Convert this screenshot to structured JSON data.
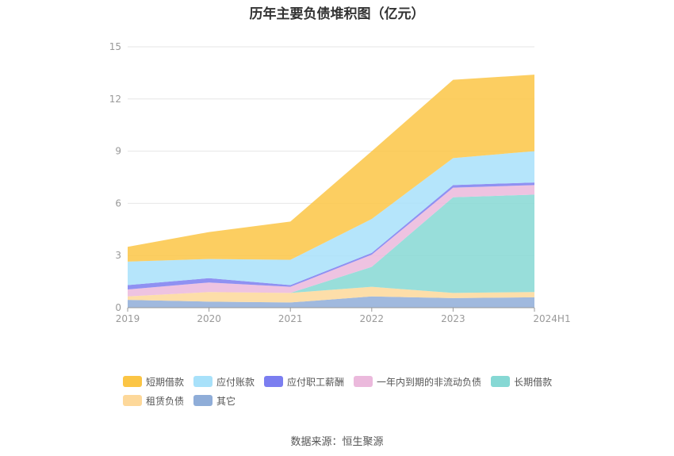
{
  "chart_data": {
    "type": "area",
    "stacked": true,
    "title": "历年主要负债堆积图（亿元）",
    "categories": [
      "2019",
      "2020",
      "2021",
      "2022",
      "2023",
      "2024H1"
    ],
    "ylim": [
      0,
      15
    ],
    "yticks": [
      0,
      3,
      6,
      9,
      12,
      15
    ],
    "grid": true,
    "legend_position": "bottom",
    "series": [
      {
        "name": "其它",
        "color": "#8fadd8",
        "values": [
          0.45,
          0.35,
          0.3,
          0.65,
          0.55,
          0.6
        ]
      },
      {
        "name": "租赁负债",
        "color": "#fdd89a",
        "values": [
          0.2,
          0.55,
          0.55,
          0.55,
          0.3,
          0.3
        ]
      },
      {
        "name": "长期借款",
        "color": "#86d8d4",
        "values": [
          0.0,
          0.0,
          0.0,
          1.15,
          5.5,
          5.6
        ]
      },
      {
        "name": "一年内到期的非流动负债",
        "color": "#ebb9dc",
        "values": [
          0.4,
          0.55,
          0.35,
          0.7,
          0.55,
          0.55
        ]
      },
      {
        "name": "应付职工薪酬",
        "color": "#7b7ef0",
        "values": [
          0.25,
          0.25,
          0.1,
          0.1,
          0.15,
          0.15
        ]
      },
      {
        "name": "应付账款",
        "color": "#a8e1fa",
        "values": [
          1.35,
          1.1,
          1.45,
          1.95,
          1.55,
          1.8
        ]
      },
      {
        "name": "短期借款",
        "color": "#fbc545",
        "values": [
          0.85,
          1.55,
          2.2,
          3.9,
          4.5,
          4.4
        ]
      }
    ]
  },
  "legend_order": [
    "短期借款",
    "应付账款",
    "应付职工薪酬",
    "一年内到期的非流动负债",
    "长期借款",
    "租赁负债",
    "其它"
  ],
  "source": "数据来源：恒生聚源"
}
